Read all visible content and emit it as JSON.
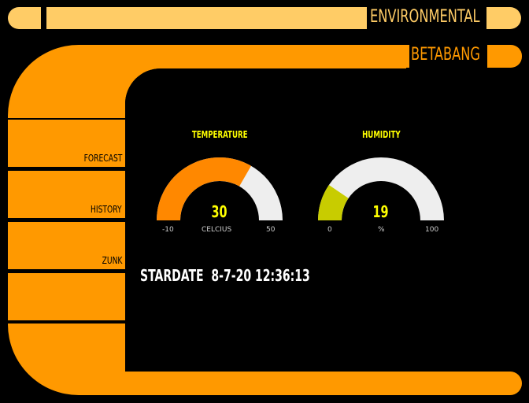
{
  "header": {
    "title": "ENVIRONMENTAL",
    "subtitle": "BETABANG"
  },
  "sidebar": {
    "items": [
      {
        "label": "FORECAST"
      },
      {
        "label": "HISTORY"
      },
      {
        "label": "ZUNK"
      },
      {
        "label": ""
      }
    ]
  },
  "gauges": [
    {
      "title": "TEMPERATURE",
      "value": 30,
      "display_value": "30",
      "min": -10,
      "max": 50,
      "min_label": "-10",
      "max_label": "50",
      "unit": "CELCIUS",
      "color": "#ff8800",
      "track_color": "#eeeeee"
    },
    {
      "title": "HUMIDITY",
      "value": 19,
      "display_value": "19",
      "min": 0,
      "max": 100,
      "min_label": "0",
      "max_label": "100",
      "unit": "%",
      "color": "#c8cc00",
      "track_color": "#eeeeee"
    }
  ],
  "status": {
    "stardate_label": "STARDATE",
    "stardate_value": "8-7-20 12:36:13"
  },
  "colors": {
    "background": "#000000",
    "header_accent": "#ffcc66",
    "frame": "#ff9900",
    "gauge_text": "#ffff00"
  }
}
